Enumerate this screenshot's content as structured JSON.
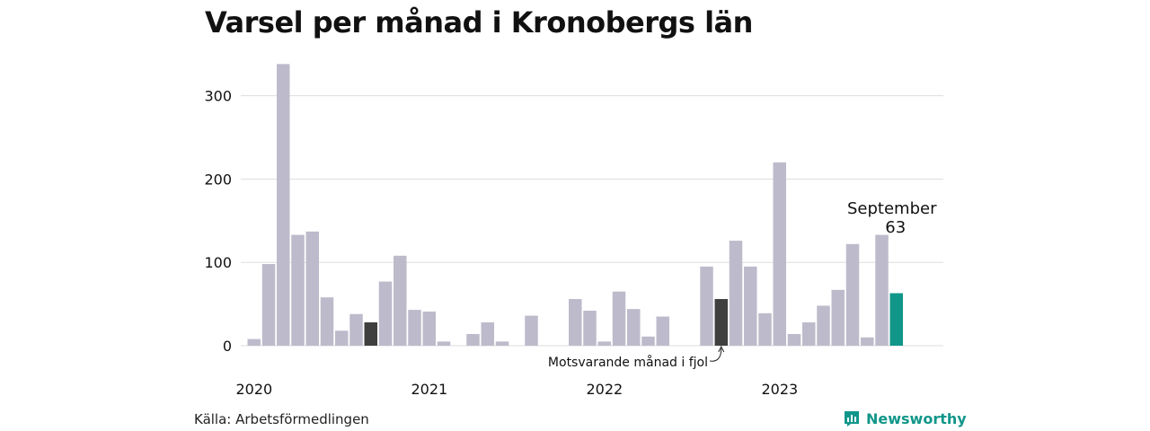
{
  "title": "Varsel per månad i Kronobergs län",
  "source": "Källa: Arbetsförmedlingen",
  "brand": {
    "name": "Newsworthy",
    "icon": "bar-chart-logo-icon"
  },
  "colors": {
    "default": "#bdbbcb",
    "same_month_last_year": "#3f3f3f",
    "current": "#11968a",
    "grid": "#dddddd",
    "brand": "#11968a"
  },
  "chart_data": {
    "type": "bar",
    "title": "Varsel per månad i Kronobergs län",
    "xlabel": "",
    "ylabel": "",
    "ylim": [
      0,
      340
    ],
    "yticks": [
      0,
      100,
      200,
      300
    ],
    "grid": true,
    "x_year_labels": [
      "2020",
      "2021",
      "2022",
      "2023"
    ],
    "start": "2020-01",
    "categories": [
      "2020-01",
      "2020-02",
      "2020-03",
      "2020-04",
      "2020-05",
      "2020-06",
      "2020-07",
      "2020-08",
      "2020-09",
      "2020-10",
      "2020-11",
      "2020-12",
      "2021-01",
      "2021-02",
      "2021-03",
      "2021-04",
      "2021-05",
      "2021-06",
      "2021-07",
      "2021-08",
      "2021-09",
      "2021-10",
      "2021-11",
      "2021-12",
      "2022-01",
      "2022-02",
      "2022-03",
      "2022-04",
      "2022-05",
      "2022-06",
      "2022-07",
      "2022-08",
      "2022-09",
      "2022-10",
      "2022-11",
      "2022-12",
      "2023-01",
      "2023-02",
      "2023-03",
      "2023-04",
      "2023-05",
      "2023-06",
      "2023-07",
      "2023-08",
      "2023-09"
    ],
    "values": [
      8,
      98,
      338,
      133,
      137,
      58,
      18,
      38,
      28,
      77,
      108,
      43,
      41,
      5,
      0,
      14,
      28,
      5,
      0,
      36,
      0,
      0,
      56,
      42,
      5,
      65,
      44,
      11,
      35,
      0,
      0,
      95,
      56,
      126,
      95,
      39,
      220,
      14,
      28,
      48,
      67,
      122,
      10,
      133,
      63
    ],
    "highlights": {
      "same_month_last_year_index": 32,
      "current_index": 44,
      "previous_year_index": 8
    },
    "annotations": {
      "current": {
        "label": "September",
        "value": "63"
      },
      "same_month_last_year": "Motsvarande månad i fjol"
    }
  }
}
